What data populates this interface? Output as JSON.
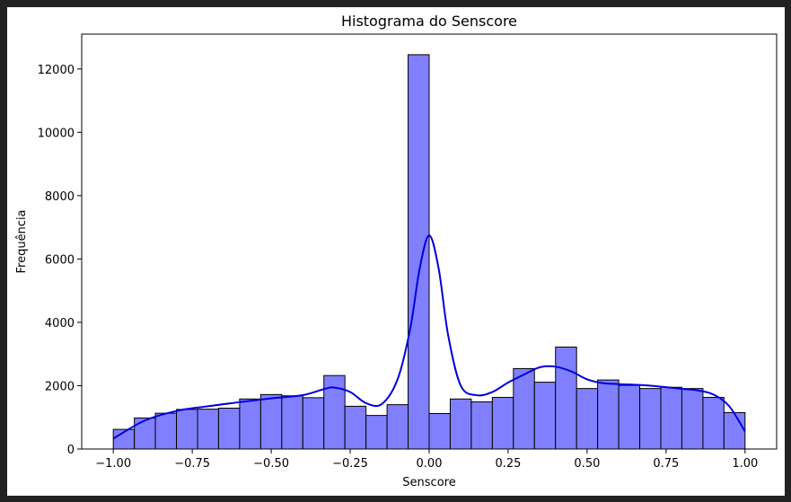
{
  "chart_data": {
    "type": "bar",
    "subtype": "histogram-with-kde",
    "title": "Histograma do Senscore",
    "xlabel": "Senscore",
    "ylabel": "Frequência",
    "xlim": [
      -1.1,
      1.1
    ],
    "ylim": [
      0,
      13100
    ],
    "xticks": [
      -1.0,
      -0.75,
      -0.5,
      -0.25,
      0.0,
      0.25,
      0.5,
      0.75,
      1.0
    ],
    "xtick_labels": [
      "−1.00",
      "−0.75",
      "−0.50",
      "−0.25",
      "0.00",
      "0.25",
      "0.50",
      "0.75",
      "1.00"
    ],
    "yticks": [
      0,
      2000,
      4000,
      6000,
      8000,
      10000,
      12000
    ],
    "ytick_labels": [
      "0",
      "2000",
      "4000",
      "6000",
      "8000",
      "10000",
      "12000"
    ],
    "bin_edges": [
      -1.0,
      -0.9333,
      -0.8667,
      -0.8,
      -0.7333,
      -0.6667,
      -0.6,
      -0.5333,
      -0.4667,
      -0.4,
      -0.3333,
      -0.2667,
      -0.2,
      -0.1333,
      -0.0667,
      0.0,
      0.0667,
      0.1333,
      0.2,
      0.2667,
      0.3333,
      0.4,
      0.4667,
      0.5333,
      0.6,
      0.6667,
      0.7333,
      0.8,
      0.8667,
      0.9333,
      1.0
    ],
    "bin_centers": [
      -0.9667,
      -0.9,
      -0.8333,
      -0.7667,
      -0.7,
      -0.6333,
      -0.5667,
      -0.5,
      -0.4333,
      -0.3667,
      -0.3,
      -0.2333,
      -0.1667,
      -0.1,
      -0.0333,
      0.0333,
      0.1,
      0.1667,
      0.2333,
      0.3,
      0.3667,
      0.4333,
      0.5,
      0.5667,
      0.6333,
      0.7,
      0.7667,
      0.8333,
      0.9,
      0.9667
    ],
    "values": [
      620,
      980,
      1130,
      1250,
      1260,
      1290,
      1580,
      1720,
      1680,
      1620,
      2320,
      1350,
      1060,
      1400,
      12450,
      1120,
      1580,
      1490,
      1630,
      2540,
      2110,
      3220,
      1910,
      2180,
      2010,
      1910,
      1950,
      1910,
      1630,
      1150
    ],
    "kde": {
      "x": [
        -1.0,
        -0.9,
        -0.8,
        -0.7,
        -0.6,
        -0.5,
        -0.4,
        -0.33,
        -0.3,
        -0.25,
        -0.2,
        -0.15,
        -0.1,
        -0.06,
        -0.03,
        0.0,
        0.03,
        0.06,
        0.1,
        0.15,
        0.2,
        0.25,
        0.3,
        0.35,
        0.4,
        0.45,
        0.5,
        0.55,
        0.6,
        0.7,
        0.8,
        0.85,
        0.9,
        0.95,
        1.0
      ],
      "y": [
        330,
        900,
        1200,
        1350,
        1480,
        1600,
        1700,
        1900,
        1940,
        1800,
        1450,
        1420,
        2200,
        3800,
        5700,
        6750,
        5700,
        3600,
        2000,
        1700,
        1800,
        2100,
        2350,
        2580,
        2600,
        2450,
        2200,
        2080,
        2050,
        2000,
        1900,
        1850,
        1720,
        1350,
        550
      ]
    },
    "bar_color": "#8080ff",
    "bar_edge_color": "#000000",
    "kde_color": "#0000dd",
    "grid": false,
    "legend": "none"
  }
}
